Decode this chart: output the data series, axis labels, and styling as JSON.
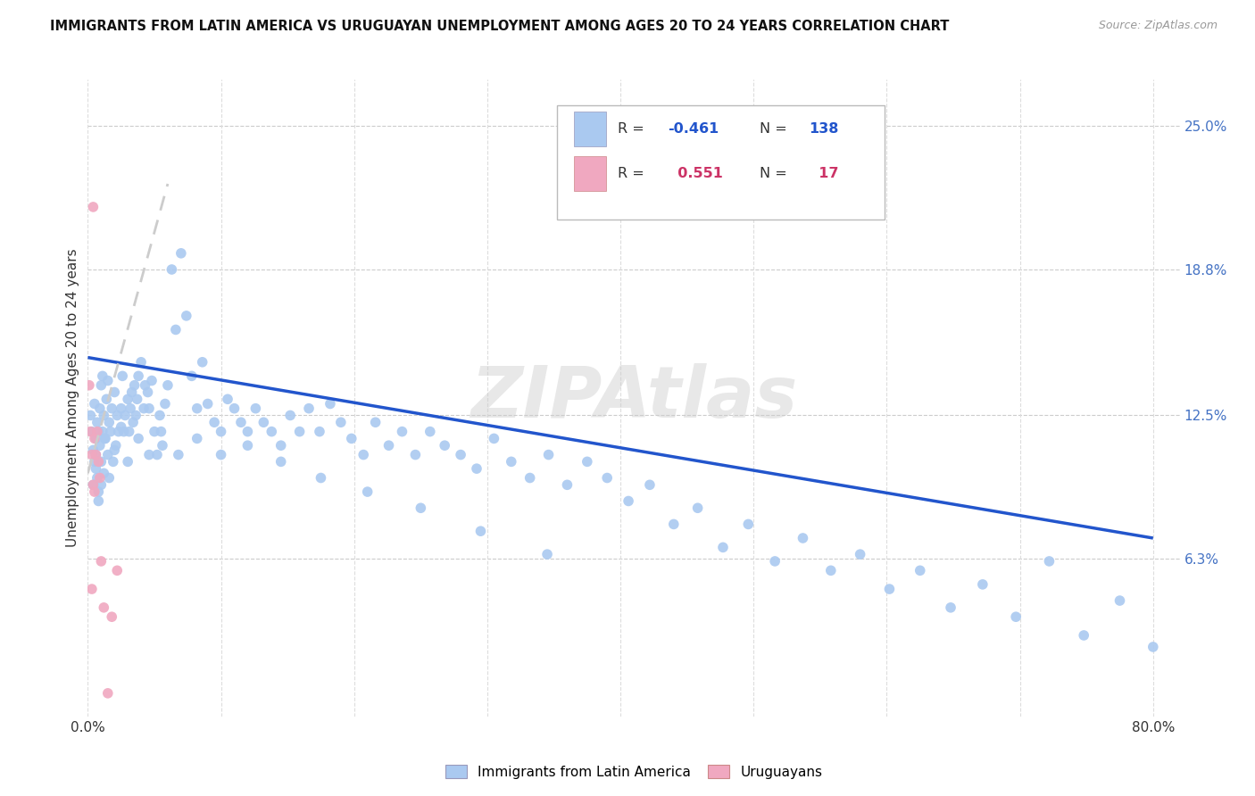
{
  "title": "IMMIGRANTS FROM LATIN AMERICA VS URUGUAYAN UNEMPLOYMENT AMONG AGES 20 TO 24 YEARS CORRELATION CHART",
  "source": "Source: ZipAtlas.com",
  "ylabel": "Unemployment Among Ages 20 to 24 years",
  "xlim": [
    0.0,
    0.82
  ],
  "ylim": [
    -0.005,
    0.27
  ],
  "xticks": [
    0.0,
    0.1,
    0.2,
    0.3,
    0.4,
    0.5,
    0.6,
    0.7,
    0.8
  ],
  "xticklabels": [
    "0.0%",
    "",
    "",
    "",
    "",
    "",
    "",
    "",
    "80.0%"
  ],
  "ytick_labels": [
    "6.3%",
    "12.5%",
    "18.8%",
    "25.0%"
  ],
  "ytick_values": [
    0.063,
    0.125,
    0.188,
    0.25
  ],
  "blue_color": "#aac9f0",
  "pink_color": "#f0a8c0",
  "blue_line_color": "#2255cc",
  "pink_line_color": "#dd7799",
  "watermark": "ZIPAtlas",
  "legend_label_blue": "Immigrants from Latin America",
  "legend_label_pink": "Uruguayans",
  "blue_trend_x": [
    0.0,
    0.8
  ],
  "blue_trend_y": [
    0.15,
    0.072
  ],
  "pink_trend_x": [
    0.0,
    0.06
  ],
  "pink_trend_y": [
    0.1,
    0.225
  ],
  "blue_scatter_x": [
    0.002,
    0.003,
    0.004,
    0.005,
    0.005,
    0.006,
    0.006,
    0.007,
    0.007,
    0.008,
    0.008,
    0.009,
    0.009,
    0.01,
    0.01,
    0.011,
    0.011,
    0.012,
    0.012,
    0.013,
    0.014,
    0.015,
    0.015,
    0.016,
    0.017,
    0.018,
    0.019,
    0.02,
    0.021,
    0.022,
    0.023,
    0.025,
    0.026,
    0.027,
    0.028,
    0.03,
    0.031,
    0.032,
    0.033,
    0.034,
    0.035,
    0.036,
    0.037,
    0.038,
    0.04,
    0.042,
    0.043,
    0.045,
    0.046,
    0.048,
    0.05,
    0.052,
    0.054,
    0.056,
    0.058,
    0.06,
    0.063,
    0.066,
    0.07,
    0.074,
    0.078,
    0.082,
    0.086,
    0.09,
    0.095,
    0.1,
    0.105,
    0.11,
    0.115,
    0.12,
    0.126,
    0.132,
    0.138,
    0.145,
    0.152,
    0.159,
    0.166,
    0.174,
    0.182,
    0.19,
    0.198,
    0.207,
    0.216,
    0.226,
    0.236,
    0.246,
    0.257,
    0.268,
    0.28,
    0.292,
    0.305,
    0.318,
    0.332,
    0.346,
    0.36,
    0.375,
    0.39,
    0.406,
    0.422,
    0.44,
    0.458,
    0.477,
    0.496,
    0.516,
    0.537,
    0.558,
    0.58,
    0.602,
    0.625,
    0.648,
    0.672,
    0.697,
    0.722,
    0.748,
    0.775,
    0.8,
    0.004,
    0.006,
    0.008,
    0.01,
    0.013,
    0.016,
    0.02,
    0.025,
    0.03,
    0.038,
    0.046,
    0.055,
    0.068,
    0.082,
    0.1,
    0.12,
    0.145,
    0.175,
    0.21,
    0.25,
    0.295,
    0.345
  ],
  "blue_scatter_y": [
    0.125,
    0.118,
    0.11,
    0.13,
    0.105,
    0.115,
    0.108,
    0.122,
    0.098,
    0.118,
    0.092,
    0.112,
    0.128,
    0.095,
    0.138,
    0.118,
    0.142,
    0.1,
    0.125,
    0.115,
    0.132,
    0.108,
    0.14,
    0.122,
    0.118,
    0.128,
    0.105,
    0.135,
    0.112,
    0.125,
    0.118,
    0.128,
    0.142,
    0.118,
    0.125,
    0.132,
    0.118,
    0.128,
    0.135,
    0.122,
    0.138,
    0.125,
    0.132,
    0.142,
    0.148,
    0.128,
    0.138,
    0.135,
    0.128,
    0.14,
    0.118,
    0.108,
    0.125,
    0.112,
    0.13,
    0.138,
    0.188,
    0.162,
    0.195,
    0.168,
    0.142,
    0.128,
    0.148,
    0.13,
    0.122,
    0.118,
    0.132,
    0.128,
    0.122,
    0.118,
    0.128,
    0.122,
    0.118,
    0.112,
    0.125,
    0.118,
    0.128,
    0.118,
    0.13,
    0.122,
    0.115,
    0.108,
    0.122,
    0.112,
    0.118,
    0.108,
    0.118,
    0.112,
    0.108,
    0.102,
    0.115,
    0.105,
    0.098,
    0.108,
    0.095,
    0.105,
    0.098,
    0.088,
    0.095,
    0.078,
    0.085,
    0.068,
    0.078,
    0.062,
    0.072,
    0.058,
    0.065,
    0.05,
    0.058,
    0.042,
    0.052,
    0.038,
    0.062,
    0.03,
    0.045,
    0.025,
    0.095,
    0.102,
    0.088,
    0.105,
    0.115,
    0.098,
    0.11,
    0.12,
    0.105,
    0.115,
    0.108,
    0.118,
    0.108,
    0.115,
    0.108,
    0.112,
    0.105,
    0.098,
    0.092,
    0.085,
    0.075,
    0.065
  ],
  "pink_scatter_x": [
    0.001,
    0.002,
    0.003,
    0.003,
    0.004,
    0.004,
    0.005,
    0.005,
    0.006,
    0.007,
    0.008,
    0.009,
    0.01,
    0.012,
    0.015,
    0.018,
    0.022
  ],
  "pink_scatter_y": [
    0.138,
    0.118,
    0.108,
    0.05,
    0.215,
    0.095,
    0.115,
    0.092,
    0.108,
    0.118,
    0.105,
    0.098,
    0.062,
    0.042,
    0.005,
    0.038,
    0.058
  ]
}
